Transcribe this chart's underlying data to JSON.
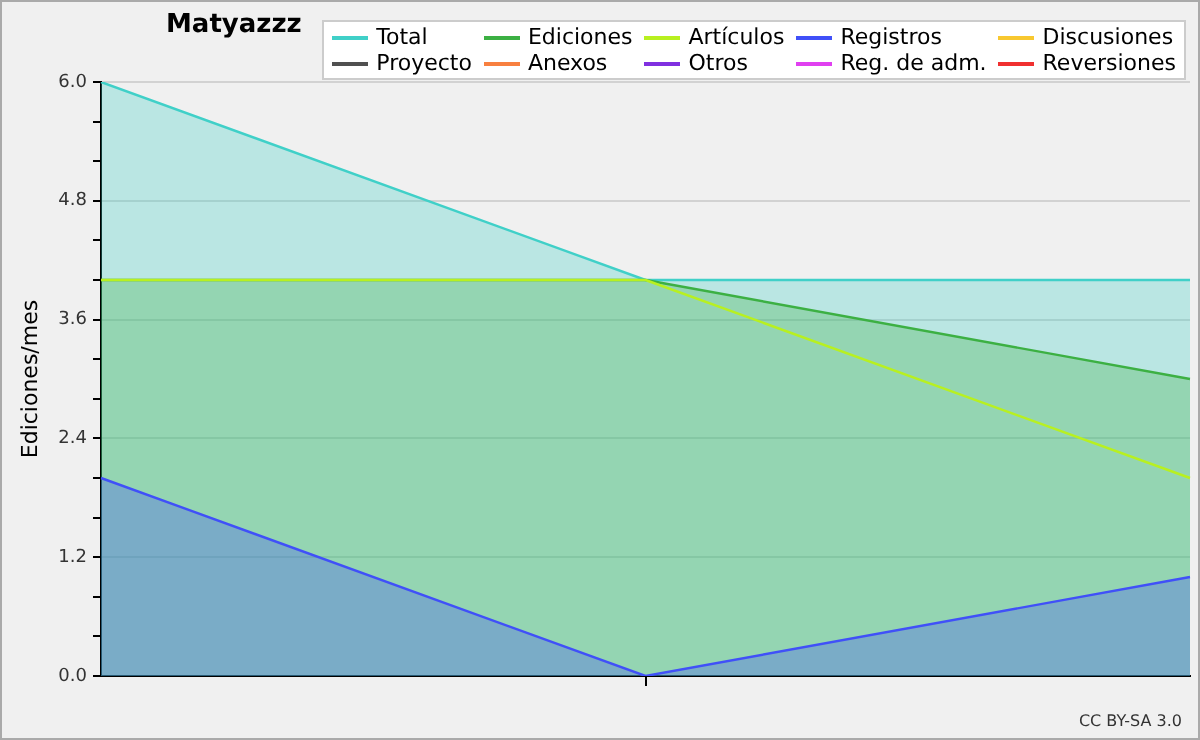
{
  "chart_data": {
    "type": "area",
    "title": "Matyazzz",
    "ylabel": "Ediciones/mes",
    "categories": [
      null,
      null,
      null
    ],
    "ylim": [
      0,
      6
    ],
    "yticks": [
      {
        "value": 0,
        "label": "0.0"
      },
      {
        "value": 0.4,
        "label": null
      },
      {
        "value": 0.8,
        "label": null
      },
      1.2,
      {
        "value": 1.6,
        "label": null
      },
      {
        "value": 2,
        "label": null
      },
      2.4,
      {
        "value": 2.8,
        "label": null
      },
      {
        "value": 3.2,
        "label": null
      },
      3.6,
      {
        "value": 4,
        "label": null
      },
      {
        "value": 4.4,
        "label": null
      },
      4.8,
      {
        "value": 5.2,
        "label": null
      },
      {
        "value": 5.6,
        "label": null
      },
      {
        "value": 6,
        "label": "6.0"
      }
    ],
    "grid": "y",
    "legend": "top right",
    "marker": "none",
    "annotations": [
      "CC BY-SA 3.0"
    ],
    "series": [
      {
        "name": "Total",
        "color": "#40d0c8",
        "values": [
          6,
          4,
          4
        ]
      },
      {
        "name": "Ediciones",
        "color": "#3cb043",
        "values": [
          4,
          4,
          3
        ]
      },
      {
        "name": "Artículos",
        "type": "line",
        "color": "#b8f020",
        "values": [
          4,
          4,
          2
        ]
      },
      {
        "name": "Registros",
        "color": "#4050f8",
        "values": [
          2,
          0,
          1
        ]
      },
      {
        "name": "Discusiones",
        "color": "#f8c830",
        "values": [
          null,
          null,
          null
        ]
      },
      {
        "name": "Proyecto",
        "color": "#505050",
        "values": [
          null,
          null,
          null
        ]
      },
      {
        "name": "Anexos",
        "color": "#f88040",
        "values": [
          null,
          null,
          null
        ]
      },
      {
        "name": "Otros",
        "color": "#8030e0",
        "values": [
          null,
          null,
          null
        ]
      },
      {
        "name": "Reg. de adm.",
        "color": "#e040f0",
        "values": [
          null,
          null,
          null
        ]
      },
      {
        "name": "Reversiones",
        "color": "#f03030",
        "values": [
          null,
          null,
          null
        ]
      }
    ]
  }
}
